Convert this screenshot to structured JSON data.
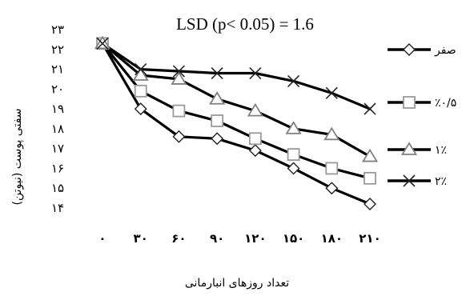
{
  "chart_data": {
    "type": "line",
    "title": "LSD (p< 0.05) = 1.6",
    "xlabel": "تعداد روزهای انبارمانی",
    "ylabel": "سفتی پوست (نیوتن)",
    "x": [
      0,
      30,
      60,
      90,
      120,
      150,
      180,
      210
    ],
    "x_tick_labels": [
      "۰",
      "۳۰",
      "۶۰",
      "۹۰",
      "۱۲۰",
      "۱۵۰",
      "۱۸۰",
      "۲۱۰"
    ],
    "xlim": [
      0,
      210
    ],
    "yticks": [
      23,
      22,
      21,
      20,
      19,
      18,
      17,
      16,
      15,
      14
    ],
    "y_tick_labels": [
      "۲۳",
      "۲۲",
      "۲۱",
      "۲۰",
      "۱۹",
      "۱۸",
      "۱۷",
      "۱۶",
      "۱۵",
      "۱۴"
    ],
    "ylim": [
      14,
      23
    ],
    "grid": false,
    "legend_position": "right",
    "series": [
      {
        "name": "صفر",
        "marker": "diamond",
        "values": [
          22.3,
          19.0,
          17.6,
          17.5,
          16.9,
          16.0,
          15.0,
          14.2
        ]
      },
      {
        "name": "٪۰/۵",
        "marker": "square",
        "values": [
          22.3,
          19.9,
          18.9,
          18.4,
          17.5,
          16.7,
          16.0,
          15.5
        ]
      },
      {
        "name": "۱٪",
        "marker": "triangle",
        "values": [
          22.3,
          20.7,
          20.5,
          19.5,
          18.9,
          18.0,
          17.7,
          16.6
        ]
      },
      {
        "name": "۲٪",
        "marker": "x",
        "values": [
          22.3,
          21.0,
          20.9,
          20.8,
          20.8,
          20.4,
          19.8,
          19.0
        ]
      }
    ]
  },
  "colors": {
    "background": "#ffffff",
    "series_line": "#000000",
    "marker_fill": "#ffffff",
    "diamond_marker": "#222222",
    "square_marker": "#9a9a9a",
    "triangle_marker": "#808080",
    "x_marker": "#222222"
  }
}
